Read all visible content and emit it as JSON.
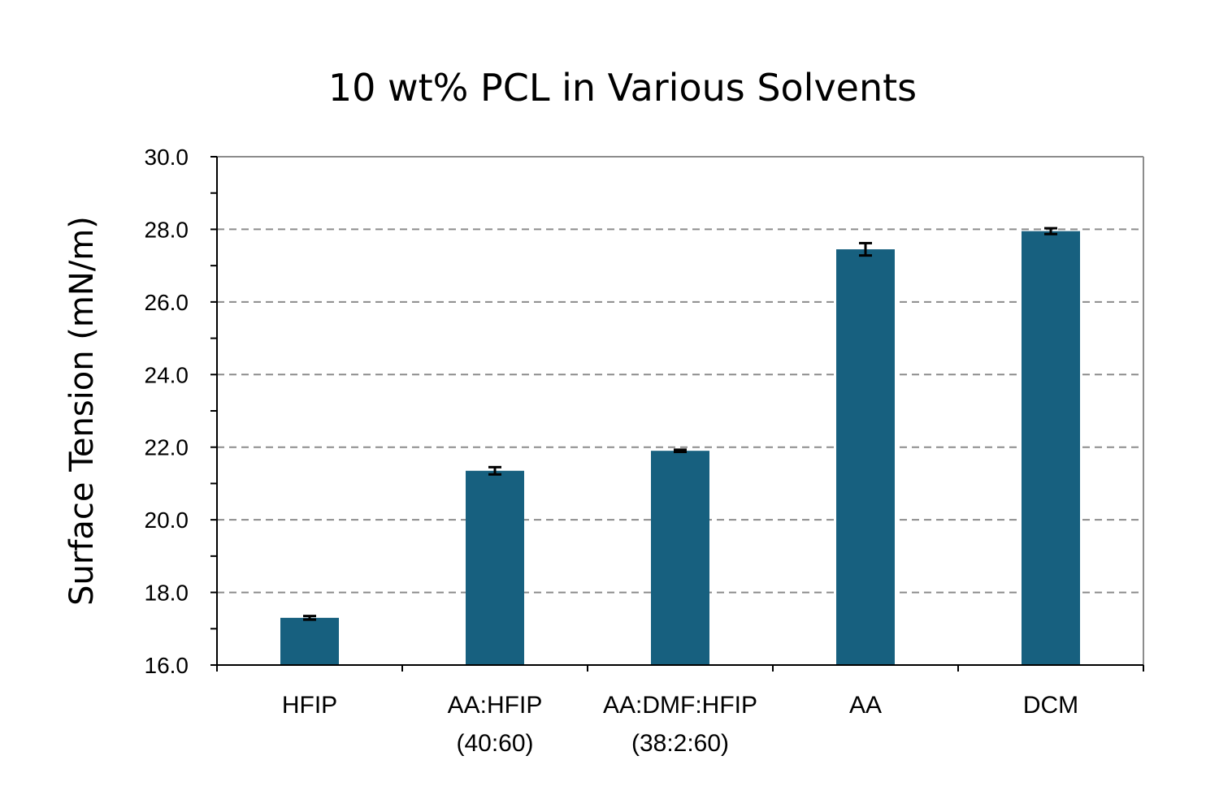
{
  "chart_data": {
    "type": "bar",
    "title": "10 wt% PCL in Various Solvents",
    "xlabel": "",
    "ylabel": "Surface Tension (mN/m)",
    "ylim": [
      16.0,
      30.0
    ],
    "y_major_step": 2.0,
    "y_minor_step": 1.0,
    "y_tick_labels": [
      "16.0",
      "18.0",
      "20.0",
      "22.0",
      "24.0",
      "26.0",
      "28.0",
      "30.0"
    ],
    "grid": "horizontal dashed",
    "categories": [
      [
        "HFIP"
      ],
      [
        "AA:HFIP",
        "(40:60)"
      ],
      [
        "AA:DMF:HFIP",
        "(38:2:60)"
      ],
      [
        "AA"
      ],
      [
        "DCM"
      ]
    ],
    "values": [
      17.3,
      21.35,
      21.9,
      27.45,
      27.95
    ],
    "errors": [
      0.05,
      0.1,
      0.03,
      0.17,
      0.08
    ],
    "bar_color": "#17607f",
    "error_color": "#000000"
  }
}
